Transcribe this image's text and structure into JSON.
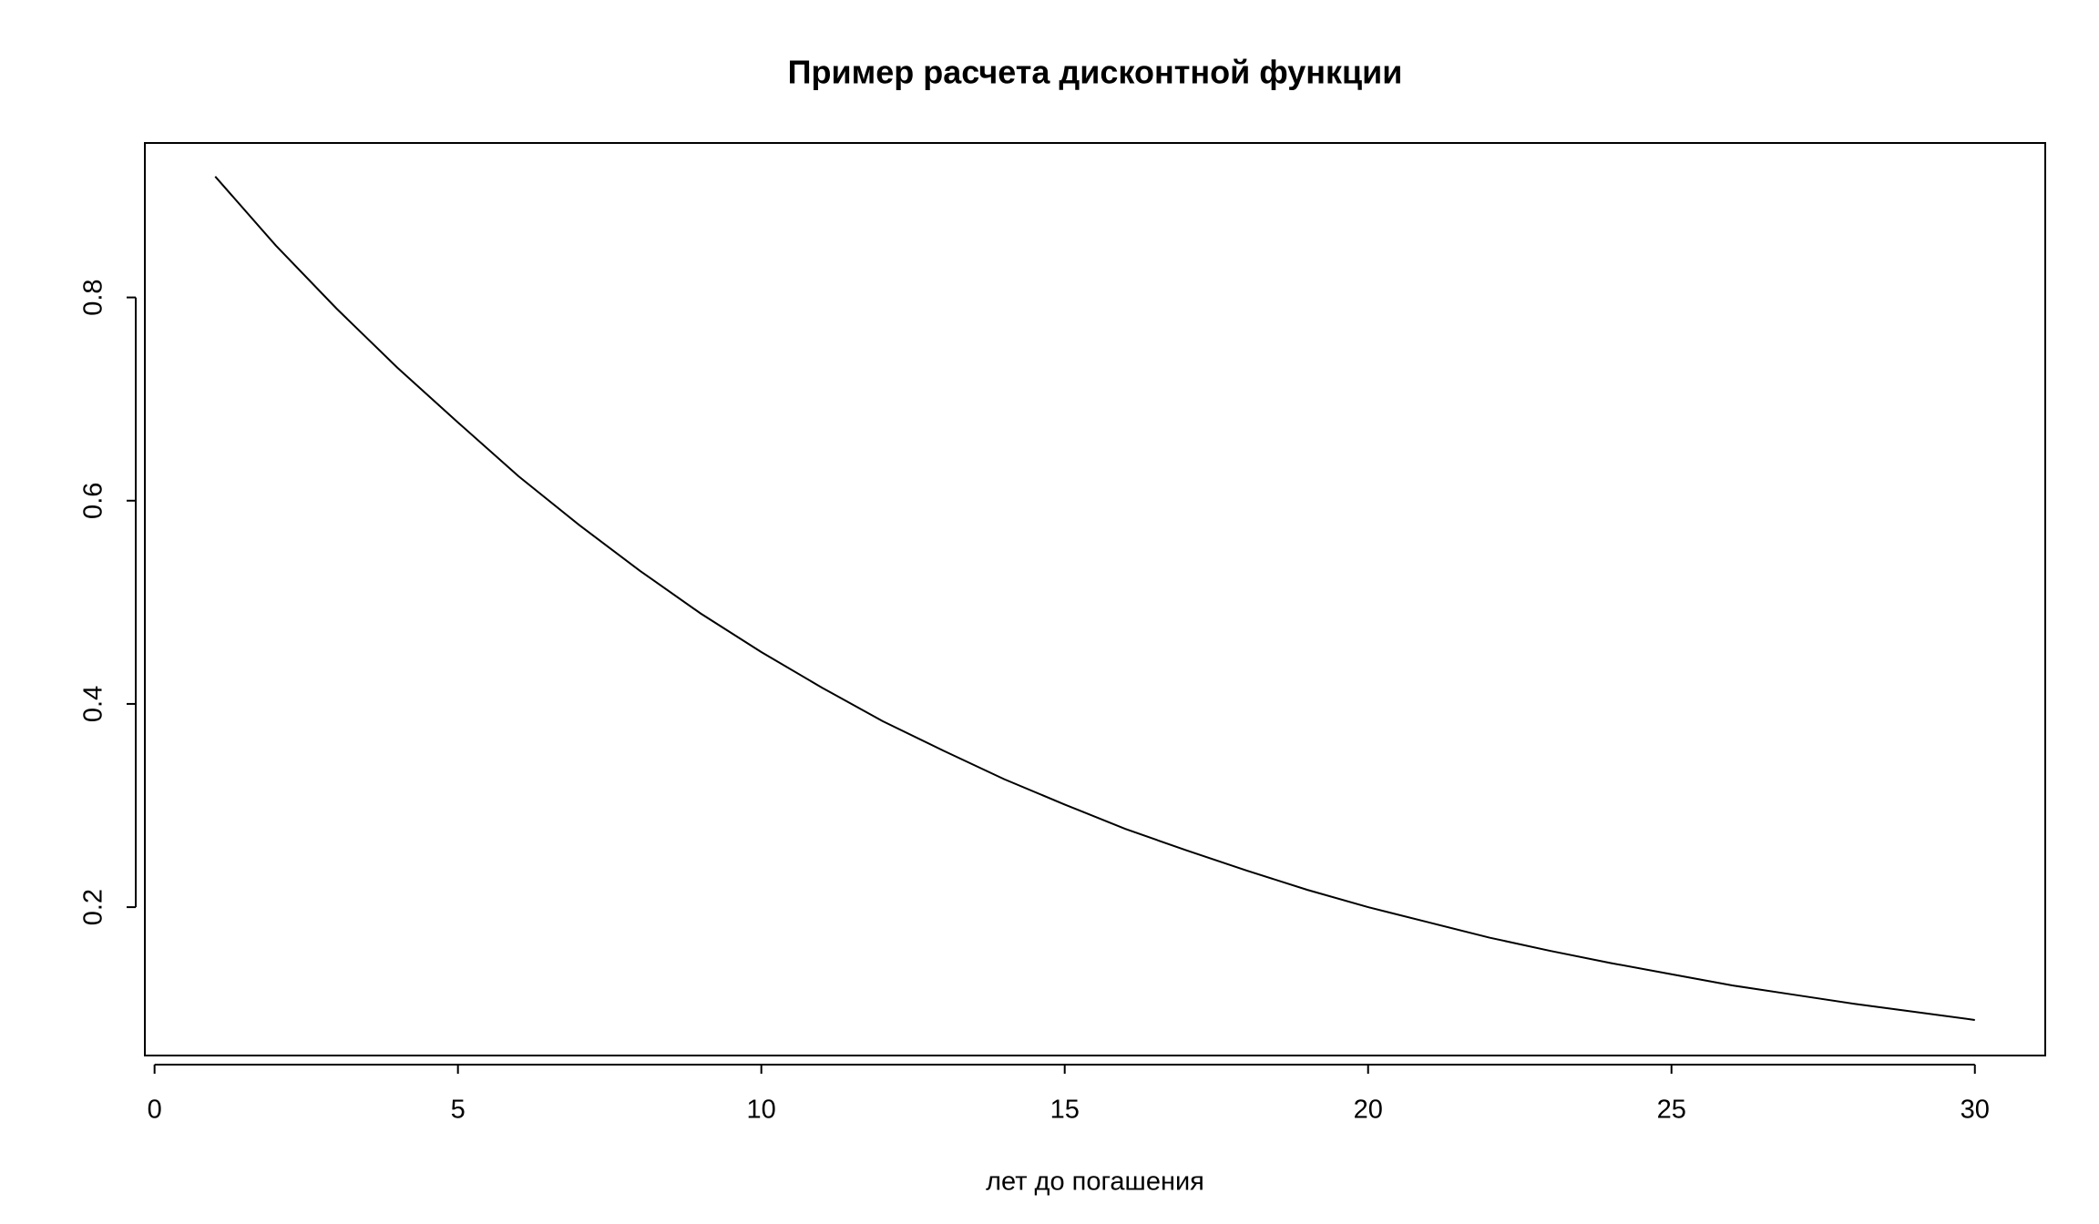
{
  "chart_data": {
    "type": "line",
    "title": "Пример расчета дисконтной функции",
    "x_label": "лет до погашения",
    "x": [
      1,
      2,
      3,
      4,
      5,
      6,
      7,
      8,
      9,
      10,
      11,
      12,
      13,
      14,
      15,
      16,
      17,
      18,
      19,
      20,
      21,
      22,
      23,
      24,
      25,
      26,
      27,
      28,
      29,
      30
    ],
    "values": [
      0.919,
      0.851,
      0.789,
      0.731,
      0.677,
      0.624,
      0.576,
      0.531,
      0.489,
      0.451,
      0.416,
      0.383,
      0.354,
      0.326,
      0.301,
      0.277,
      0.256,
      0.236,
      0.217,
      0.2,
      0.185,
      0.17,
      0.157,
      0.145,
      0.134,
      0.123,
      0.114,
      0.105,
      0.097,
      0.089
    ],
    "color": "#000000",
    "xlim": [
      -0.16,
      31.16
    ],
    "xticks": [
      0,
      5,
      10,
      15,
      20,
      25,
      30
    ],
    "ylim": [
      0.054,
      0.952
    ],
    "yticks": [
      0.2,
      0.4,
      0.6,
      0.8
    ],
    "grid": false
  }
}
